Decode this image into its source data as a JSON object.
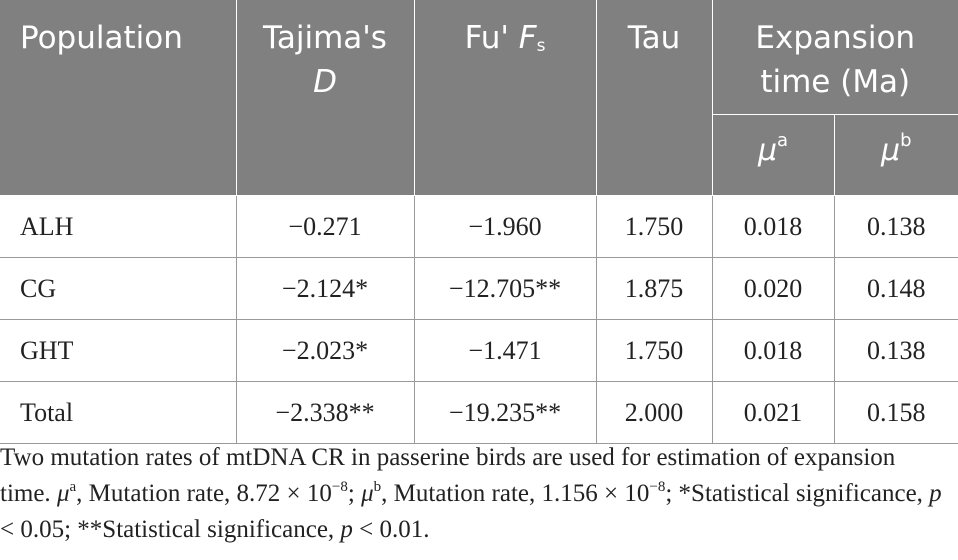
{
  "table": {
    "headers": {
      "population": "Population",
      "tajima": "Tajima's",
      "tajima_symbol": "D",
      "fu": "Fu' ",
      "fu_symbol": "F",
      "fu_sub": "s",
      "tau": "Tau",
      "expansion": "Expansion time (Ma)",
      "mu_a": "μ",
      "mu_a_sup": "a",
      "mu_b": "μ",
      "mu_b_sup": "b"
    },
    "rows": [
      {
        "population": "ALH",
        "tajima_d": "−0.271",
        "fu_fs": "−1.960",
        "tau": "1.750",
        "mu_a": "0.018",
        "mu_b": "0.138"
      },
      {
        "population": "CG",
        "tajima_d": "−2.124*",
        "fu_fs": "−12.705**",
        "tau": "1.875",
        "mu_a": "0.020",
        "mu_b": "0.148"
      },
      {
        "population": "GHT",
        "tajima_d": "−2.023*",
        "fu_fs": "−1.471",
        "tau": "1.750",
        "mu_a": "0.018",
        "mu_b": "0.138"
      },
      {
        "population": "Total",
        "tajima_d": "−2.338**",
        "fu_fs": "−19.235**",
        "tau": "2.000",
        "mu_a": "0.021",
        "mu_b": "0.158"
      }
    ]
  },
  "footnote": {
    "intro": "Two mutation rates of mtDNA CR in passerine birds are used for estimation of expansion time. ",
    "mu_a_symbol": "μ",
    "mu_a_sup": "a",
    "mu_a_text": ", Mutation rate, 8.72 × 10",
    "mu_a_exp": "−8",
    "sep1": "; ",
    "mu_b_symbol": "μ",
    "mu_b_sup": "b",
    "mu_b_text": ", Mutation rate, 1.156 × 10",
    "mu_b_exp": "−8",
    "sig1": "; *Statistical significance, ",
    "p1_symbol": "p",
    "p1_text": " < 0.05; **Statistical significance, ",
    "p2_symbol": "p",
    "p2_text": " < 0.01."
  }
}
